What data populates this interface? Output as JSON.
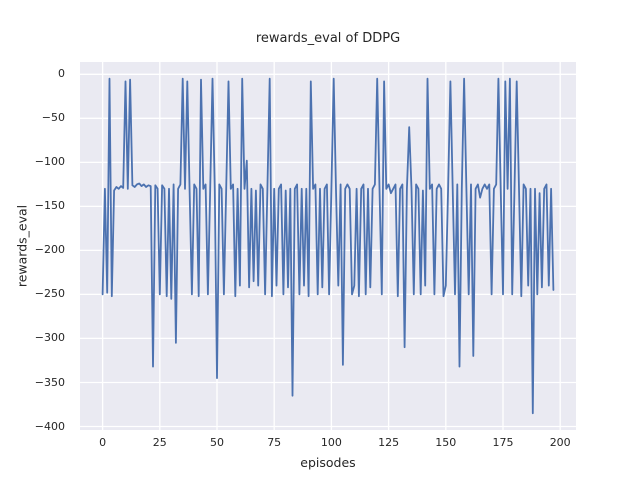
{
  "figure": {
    "bg": "#ffffff",
    "panel_bg": "#eaeaf2",
    "grid_color": "#ffffff",
    "text_color": "#262626"
  },
  "chart_data": {
    "type": "line",
    "title": "rewards_eval of DDPG",
    "xlabel": "episodes",
    "ylabel": "rewards_eval",
    "xlim": [
      -9.9,
      206.9
    ],
    "ylim": [
      -404,
      14
    ],
    "xticks": [
      0,
      25,
      50,
      75,
      100,
      125,
      150,
      175,
      200
    ],
    "yticks": [
      0,
      -50,
      -100,
      -150,
      -200,
      -250,
      -300,
      -350,
      -400
    ],
    "grid": true,
    "legend": false,
    "series": [
      {
        "name": "rewards_eval",
        "color": "#4c72b0",
        "x_start": 0,
        "x_step": 1,
        "values": [
          -250,
          -130,
          -248,
          -5,
          -252,
          -132,
          -128,
          -130,
          -127,
          -129,
          -8,
          -130,
          -6,
          -126,
          -128,
          -125,
          -124,
          -127,
          -125,
          -128,
          -126,
          -127,
          -332,
          -126,
          -130,
          -250,
          -126,
          -130,
          -252,
          -130,
          -255,
          -125,
          -305,
          -130,
          -125,
          -5,
          -130,
          -8,
          -132,
          -250,
          -125,
          -130,
          -252,
          -6,
          -130,
          -125,
          -250,
          -130,
          -5,
          -132,
          -345,
          -125,
          -130,
          -250,
          -130,
          -8,
          -130,
          -125,
          -252,
          -130,
          -240,
          -5,
          -130,
          -98,
          -242,
          -130,
          -235,
          -132,
          -240,
          -125,
          -130,
          -250,
          -130,
          -5,
          -252,
          -130,
          -240,
          -130,
          -125,
          -250,
          -132,
          -242,
          -130,
          -365,
          -130,
          -125,
          -250,
          -130,
          -240,
          -130,
          -252,
          -8,
          -130,
          -125,
          -250,
          -130,
          -242,
          -130,
          -125,
          -250,
          -130,
          -5,
          -132,
          -240,
          -125,
          -330,
          -130,
          -125,
          -130,
          -250,
          -240,
          -130,
          -252,
          -130,
          -125,
          -250,
          -130,
          -242,
          -130,
          -125,
          -5,
          -130,
          -250,
          -8,
          -130,
          -125,
          -135,
          -130,
          -125,
          -252,
          -130,
          -125,
          -310,
          -130,
          -60,
          -130,
          -250,
          -125,
          -130,
          -250,
          -132,
          -240,
          -5,
          -130,
          -125,
          -250,
          -130,
          -125,
          -130,
          -252,
          -240,
          -130,
          -8,
          -130,
          -250,
          -125,
          -332,
          -130,
          -5,
          -130,
          -250,
          -125,
          -320,
          -130,
          -125,
          -140,
          -130,
          -125,
          -130,
          -125,
          -250,
          -130,
          -125,
          -5,
          -130,
          -250,
          -8,
          -130,
          -5,
          -250,
          -130,
          -8,
          -130,
          -252,
          -125,
          -130,
          -240,
          -130,
          -385,
          -130,
          -250,
          -135,
          -242,
          -130,
          -125,
          -240,
          -130,
          -245
        ]
      }
    ]
  }
}
